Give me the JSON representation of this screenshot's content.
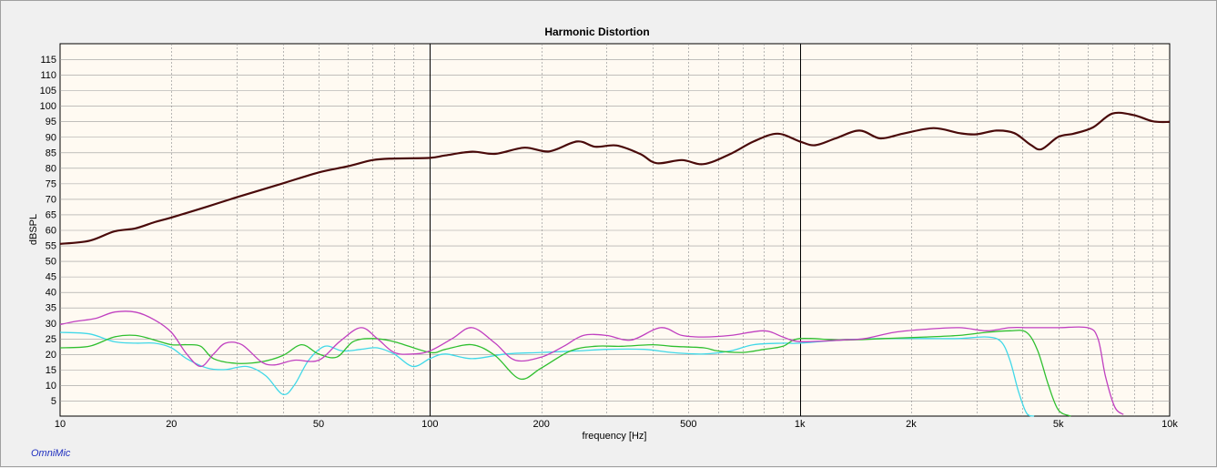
{
  "chart_data": {
    "type": "line",
    "title": "Harmonic Distortion",
    "xlabel": "frequency [Hz]",
    "ylabel": "dBSPL",
    "x_scale": "log",
    "xlim": [
      10,
      10000
    ],
    "ylim": [
      0,
      120
    ],
    "grid": true,
    "x_ticks": [
      {
        "value": 10,
        "label": "10"
      },
      {
        "value": 20,
        "label": "20"
      },
      {
        "value": 50,
        "label": "50"
      },
      {
        "value": 100,
        "label": "100"
      },
      {
        "value": 200,
        "label": "200"
      },
      {
        "value": 500,
        "label": "500"
      },
      {
        "value": 1000,
        "label": "1k"
      },
      {
        "value": 2000,
        "label": "2k"
      },
      {
        "value": 5000,
        "label": "5k"
      },
      {
        "value": 10000,
        "label": "10k"
      }
    ],
    "y_ticks": [
      5,
      10,
      15,
      20,
      25,
      30,
      35,
      40,
      45,
      50,
      55,
      60,
      65,
      70,
      75,
      80,
      85,
      90,
      95,
      100,
      105,
      110,
      115
    ],
    "series": [
      {
        "color": "#4a0a0a",
        "points": [
          [
            10,
            55.5
          ],
          [
            12,
            56.5
          ],
          [
            14,
            59.5
          ],
          [
            16,
            60.5
          ],
          [
            18,
            62.5
          ],
          [
            20,
            64
          ],
          [
            25,
            67.5
          ],
          [
            30,
            70.5
          ],
          [
            40,
            75
          ],
          [
            50,
            78.5
          ],
          [
            60,
            80.5
          ],
          [
            70,
            82.5
          ],
          [
            80,
            83
          ],
          [
            100,
            83.2
          ],
          [
            110,
            84
          ],
          [
            130,
            85.2
          ],
          [
            150,
            84.5
          ],
          [
            180,
            86.5
          ],
          [
            210,
            85.3
          ],
          [
            250,
            88.5
          ],
          [
            280,
            86.8
          ],
          [
            320,
            87.2
          ],
          [
            370,
            84.5
          ],
          [
            410,
            81.5
          ],
          [
            480,
            82.5
          ],
          [
            550,
            81.2
          ],
          [
            650,
            84.5
          ],
          [
            750,
            88.5
          ],
          [
            870,
            91
          ],
          [
            1000,
            88.5
          ],
          [
            1100,
            87.3
          ],
          [
            1250,
            89.5
          ],
          [
            1450,
            92
          ],
          [
            1650,
            89.5
          ],
          [
            1900,
            91
          ],
          [
            2300,
            92.8
          ],
          [
            2700,
            91.2
          ],
          [
            3000,
            90.8
          ],
          [
            3400,
            92
          ],
          [
            3800,
            91.2
          ],
          [
            4200,
            87.5
          ],
          [
            4500,
            86
          ],
          [
            5000,
            90
          ],
          [
            5500,
            91
          ],
          [
            6200,
            93
          ],
          [
            7000,
            97.5
          ],
          [
            8000,
            97
          ],
          [
            9000,
            95
          ],
          [
            10000,
            94.8
          ]
        ]
      },
      {
        "color": "#c040c0",
        "points": [
          [
            10,
            29.5
          ],
          [
            11,
            30.5
          ],
          [
            12.5,
            31.5
          ],
          [
            14,
            33.5
          ],
          [
            16,
            33.5
          ],
          [
            18,
            31
          ],
          [
            20,
            27
          ],
          [
            22,
            20
          ],
          [
            24,
            16
          ],
          [
            26,
            20
          ],
          [
            28,
            23.5
          ],
          [
            31,
            23
          ],
          [
            35,
            17.5
          ],
          [
            38,
            16.5
          ],
          [
            43,
            18
          ],
          [
            50,
            18
          ],
          [
            57,
            24
          ],
          [
            65,
            28.5
          ],
          [
            72,
            25
          ],
          [
            80,
            20.5
          ],
          [
            90,
            20
          ],
          [
            100,
            21
          ],
          [
            115,
            25
          ],
          [
            130,
            28.5
          ],
          [
            150,
            23.5
          ],
          [
            170,
            18
          ],
          [
            200,
            19
          ],
          [
            230,
            22.5
          ],
          [
            260,
            26
          ],
          [
            300,
            26
          ],
          [
            350,
            24.5
          ],
          [
            420,
            28.5
          ],
          [
            480,
            26
          ],
          [
            550,
            25.5
          ],
          [
            650,
            26
          ],
          [
            800,
            27.5
          ],
          [
            900,
            25.5
          ],
          [
            1000,
            24
          ],
          [
            1300,
            24.5
          ],
          [
            1500,
            25
          ],
          [
            1800,
            27
          ],
          [
            2200,
            28
          ],
          [
            2700,
            28.5
          ],
          [
            3200,
            27.5
          ],
          [
            3700,
            28.5
          ],
          [
            4200,
            28.5
          ],
          [
            5000,
            28.5
          ],
          [
            6000,
            28.5
          ],
          [
            6400,
            25
          ],
          [
            6700,
            13
          ],
          [
            7100,
            3
          ],
          [
            7500,
            0.5
          ]
        ]
      },
      {
        "color": "#2fbf2f",
        "points": [
          [
            10,
            22
          ],
          [
            12,
            22.5
          ],
          [
            14,
            25.5
          ],
          [
            16,
            26
          ],
          [
            18,
            24.5
          ],
          [
            20,
            23
          ],
          [
            22,
            23
          ],
          [
            24,
            22.5
          ],
          [
            26,
            18.5
          ],
          [
            30,
            17
          ],
          [
            35,
            17.5
          ],
          [
            40,
            19.5
          ],
          [
            45,
            23
          ],
          [
            50,
            20
          ],
          [
            56,
            19
          ],
          [
            62,
            24
          ],
          [
            70,
            25
          ],
          [
            80,
            24
          ],
          [
            100,
            20.5
          ],
          [
            110,
            21.5
          ],
          [
            130,
            23
          ],
          [
            150,
            19.5
          ],
          [
            175,
            12
          ],
          [
            200,
            15.5
          ],
          [
            240,
            21
          ],
          [
            280,
            22.5
          ],
          [
            330,
            22.5
          ],
          [
            400,
            23
          ],
          [
            450,
            22.5
          ],
          [
            550,
            22
          ],
          [
            600,
            21
          ],
          [
            700,
            20.5
          ],
          [
            800,
            21.5
          ],
          [
            900,
            22.5
          ],
          [
            1000,
            25
          ],
          [
            1300,
            24.5
          ],
          [
            1700,
            25
          ],
          [
            2200,
            25.5
          ],
          [
            2700,
            26
          ],
          [
            3200,
            27
          ],
          [
            3700,
            27.5
          ],
          [
            4100,
            27
          ],
          [
            4400,
            21
          ],
          [
            4700,
            10
          ],
          [
            5000,
            2
          ],
          [
            5400,
            0
          ]
        ]
      },
      {
        "color": "#40d8e8",
        "points": [
          [
            10,
            27
          ],
          [
            12,
            26.5
          ],
          [
            14,
            24
          ],
          [
            16,
            23.5
          ],
          [
            18,
            23.5
          ],
          [
            20,
            22
          ],
          [
            22,
            18.5
          ],
          [
            25,
            15.5
          ],
          [
            28,
            15
          ],
          [
            32,
            16
          ],
          [
            36,
            13
          ],
          [
            40,
            7
          ],
          [
            43,
            10
          ],
          [
            47,
            18
          ],
          [
            52,
            22.5
          ],
          [
            58,
            21
          ],
          [
            65,
            21.5
          ],
          [
            72,
            22
          ],
          [
            80,
            20
          ],
          [
            90,
            16
          ],
          [
            100,
            18.5
          ],
          [
            110,
            20
          ],
          [
            130,
            18.5
          ],
          [
            160,
            20
          ],
          [
            200,
            20.5
          ],
          [
            250,
            21
          ],
          [
            300,
            21.5
          ],
          [
            380,
            21.5
          ],
          [
            450,
            20.5
          ],
          [
            550,
            20
          ],
          [
            650,
            21
          ],
          [
            750,
            23
          ],
          [
            900,
            23.5
          ],
          [
            1000,
            23.5
          ],
          [
            1300,
            24.5
          ],
          [
            1700,
            25
          ],
          [
            2200,
            25
          ],
          [
            2700,
            25
          ],
          [
            3200,
            25.5
          ],
          [
            3500,
            24
          ],
          [
            3700,
            18
          ],
          [
            3900,
            8
          ],
          [
            4100,
            1
          ],
          [
            4300,
            0
          ]
        ]
      }
    ]
  },
  "branding": {
    "text": "OmniMic",
    "color": "#1f2fbf"
  }
}
